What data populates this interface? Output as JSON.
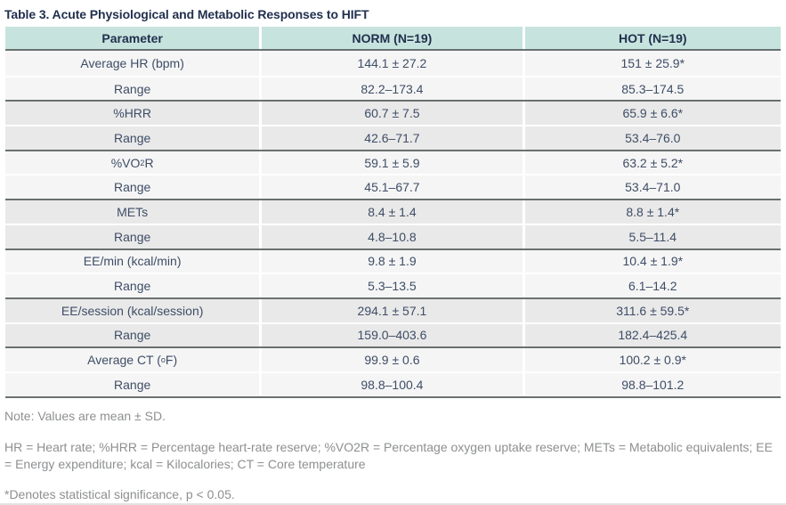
{
  "title": "Table 3. Acute Physiological and Metabolic Responses to HIFT",
  "colors": {
    "header_bg": "#c6e4dd",
    "row_light": "#f5f5f5",
    "row_dark": "#e9e9e9",
    "dark_rule": "#6a7170",
    "text": "#3e4d66",
    "title_text": "#22304f",
    "note_text": "#8d8f91"
  },
  "table": {
    "headers": [
      "Parameter",
      "NORM (N=19)",
      "HOT (N=19)"
    ],
    "rows": [
      {
        "parameter": "Average HR (bpm)",
        "norm": "144.1 ± 27.2",
        "hot": "151 ± 25.9*"
      },
      {
        "parameter": "Range",
        "norm": "82.2–173.4",
        "hot": "85.3–174.5"
      },
      {
        "parameter": "%HRR",
        "norm": "60.7 ± 7.5",
        "hot": "65.9 ± 6.6*"
      },
      {
        "parameter": "Range",
        "norm": "42.6–71.7",
        "hot": "53.4–76.0"
      },
      {
        "parameter": [
          {
            "text": "%VO"
          },
          {
            "text": "2",
            "script": "sub"
          },
          {
            "text": "R"
          }
        ],
        "norm": "59.1 ± 5.9",
        "hot": "63.2 ± 5.2*"
      },
      {
        "parameter": "Range",
        "norm": "45.1–67.7",
        "hot": "53.4–71.0"
      },
      {
        "parameter": "METs",
        "norm": "8.4 ± 1.4",
        "hot": "8.8 ± 1.4*"
      },
      {
        "parameter": "Range",
        "norm": "4.8–10.8",
        "hot": "5.5–11.4"
      },
      {
        "parameter": "EE/min (kcal/min)",
        "norm": "9.8 ± 1.9",
        "hot": "10.4 ± 1.9*"
      },
      {
        "parameter": "Range",
        "norm": "5.3–13.5",
        "hot": "6.1–14.2"
      },
      {
        "parameter": "EE/session (kcal/session)",
        "norm": "294.1 ± 57.1",
        "hot": "311.6 ± 59.5*"
      },
      {
        "parameter": "Range",
        "norm": "159.0–403.6",
        "hot": "182.4–425.4"
      },
      {
        "parameter": [
          {
            "text": "Average CT ("
          },
          {
            "text": "o",
            "script": "sup"
          },
          {
            "text": "F)"
          }
        ],
        "norm": "99.9 ± 0.6",
        "hot": "100.2 ± 0.9*"
      },
      {
        "parameter": "Range",
        "norm": "98.8–100.4",
        "hot": "98.8–101.2"
      }
    ]
  },
  "notes": {
    "mean_sd": "Note: Values are mean ± SD.",
    "abbreviations": "HR = Heart rate; %HRR = Percentage heart-rate reserve; %VO2R = Percentage oxygen uptake reserve; METs = Metabolic equivalents; EE = Energy expenditure; kcal = Kilocalories; CT = Core temperature",
    "significance": "*Denotes statistical significance, p < 0.05."
  }
}
